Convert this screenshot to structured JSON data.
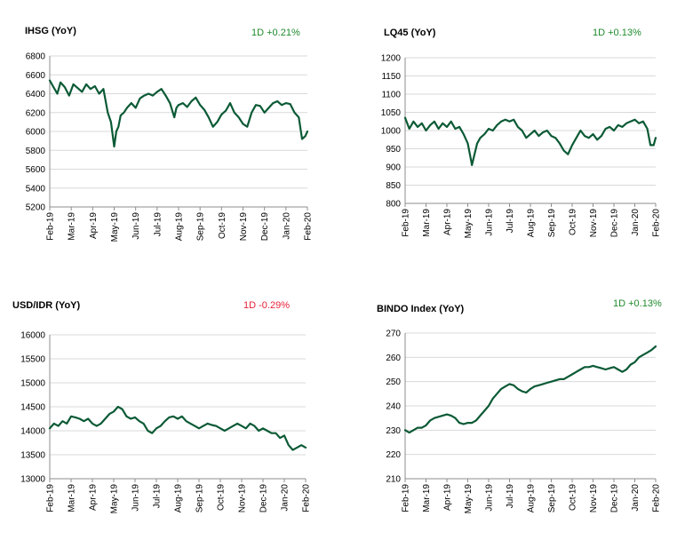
{
  "colors": {
    "line": "#0b5a35",
    "positive": "#1e8a2c",
    "negative": "#e8213a",
    "grid": "#d9d9d9",
    "axis": "#8c8c8c"
  },
  "chart_data": [
    {
      "type": "line",
      "title": "IHSG (YoY)",
      "change": "1D +0.21%",
      "change_sign": "positive",
      "ylim": [
        5200,
        6800
      ],
      "yticks": [
        "6800",
        "6600",
        "6400",
        "6200",
        "6000",
        "5800",
        "5600",
        "5400",
        "5200"
      ],
      "xticks": [
        "Feb-19",
        "Mar-19",
        "Apr-19",
        "May-19",
        "Jun-19",
        "Jul-19",
        "Aug-19",
        "Sep-19",
        "Oct-19",
        "Nov-19",
        "Dec-19",
        "Jan-20",
        "Feb-20"
      ],
      "grid": true,
      "series": [
        {
          "x": [
            0,
            0.15,
            0.35,
            0.5,
            0.7,
            0.9,
            1.1,
            1.3,
            1.5,
            1.7,
            1.9,
            2.1,
            2.3,
            2.5,
            2.7,
            2.85,
            3.0,
            3.1,
            3.2,
            3.3,
            3.45,
            3.6,
            3.8,
            4.0,
            4.2,
            4.4,
            4.6,
            4.8,
            5.0,
            5.2,
            5.4,
            5.6,
            5.8,
            5.9,
            6.0,
            6.2,
            6.4,
            6.6,
            6.8,
            7.0,
            7.2,
            7.4,
            7.6,
            7.8,
            8.0,
            8.2,
            8.4,
            8.6,
            8.8,
            9.0,
            9.2,
            9.4,
            9.6,
            9.8,
            10.0,
            10.2,
            10.4,
            10.6,
            10.8,
            11.0,
            11.2,
            11.4,
            11.6,
            11.75,
            11.9,
            12.0
          ],
          "values": [
            6540,
            6480,
            6400,
            6520,
            6470,
            6380,
            6500,
            6460,
            6420,
            6500,
            6450,
            6480,
            6400,
            6450,
            6200,
            6100,
            5840,
            6000,
            6050,
            6170,
            6200,
            6250,
            6300,
            6250,
            6350,
            6380,
            6400,
            6380,
            6420,
            6450,
            6380,
            6300,
            6150,
            6250,
            6280,
            6300,
            6260,
            6320,
            6360,
            6280,
            6230,
            6150,
            6050,
            6100,
            6180,
            6220,
            6300,
            6200,
            6150,
            6080,
            6050,
            6200,
            6280,
            6270,
            6200,
            6250,
            6300,
            6320,
            6280,
            6300,
            6290,
            6200,
            6150,
            5920,
            5950,
            6000
          ]
        }
      ]
    },
    {
      "type": "line",
      "title": "LQ45 (YoY)",
      "change": "1D +0.13%",
      "change_sign": "positive",
      "ylim": [
        800,
        1200
      ],
      "yticks": [
        "1200",
        "1150",
        "1100",
        "1050",
        "1000",
        "950",
        "900",
        "850",
        "800"
      ],
      "xticks": [
        "Feb-19",
        "Mar-19",
        "Apr-19",
        "May-19",
        "Jun-19",
        "Jul-19",
        "Aug-19",
        "Sep-19",
        "Oct-19",
        "Nov-19",
        "Dec-19",
        "Jan-20",
        "Feb-20"
      ],
      "grid": true,
      "series": [
        {
          "x": [
            0,
            0.2,
            0.4,
            0.6,
            0.8,
            1.0,
            1.2,
            1.4,
            1.6,
            1.8,
            2.0,
            2.2,
            2.4,
            2.6,
            2.8,
            3.0,
            3.1,
            3.2,
            3.3,
            3.45,
            3.6,
            3.8,
            4.0,
            4.2,
            4.4,
            4.6,
            4.8,
            5.0,
            5.2,
            5.4,
            5.6,
            5.8,
            6.0,
            6.2,
            6.4,
            6.6,
            6.8,
            7.0,
            7.2,
            7.4,
            7.6,
            7.8,
            8.0,
            8.2,
            8.4,
            8.6,
            8.8,
            9.0,
            9.2,
            9.4,
            9.6,
            9.8,
            10.0,
            10.2,
            10.4,
            10.6,
            10.8,
            11.0,
            11.2,
            11.4,
            11.6,
            11.75,
            11.9,
            12.0
          ],
          "values": [
            1035,
            1005,
            1025,
            1010,
            1020,
            1000,
            1015,
            1025,
            1005,
            1020,
            1010,
            1025,
            1005,
            1010,
            990,
            965,
            935,
            905,
            930,
            965,
            980,
            990,
            1005,
            1000,
            1015,
            1025,
            1030,
            1025,
            1030,
            1010,
            1000,
            980,
            990,
            1000,
            985,
            995,
            1000,
            985,
            980,
            965,
            945,
            935,
            960,
            980,
            1000,
            985,
            980,
            990,
            975,
            985,
            1005,
            1010,
            1000,
            1015,
            1010,
            1020,
            1025,
            1030,
            1020,
            1025,
            1005,
            960,
            960,
            980
          ]
        }
      ]
    },
    {
      "type": "line",
      "title": "USD/IDR  (YoY)",
      "change": "1D -0.29%",
      "change_sign": "negative",
      "ylim": [
        13000,
        16000
      ],
      "yticks": [
        "16000",
        "15500",
        "15000",
        "14500",
        "14000",
        "13500",
        "13000"
      ],
      "xticks": [
        "Feb-19",
        "Mar-19",
        "Apr-19",
        "May-19",
        "Jun-19",
        "Jul-19",
        "Aug-19",
        "Sep-19",
        "Oct-19",
        "Nov-19",
        "Dec-19",
        "Jan-20",
        "Feb-20"
      ],
      "grid": true,
      "series": [
        {
          "x": [
            0,
            0.2,
            0.4,
            0.6,
            0.8,
            1.0,
            1.2,
            1.4,
            1.6,
            1.8,
            2.0,
            2.2,
            2.4,
            2.6,
            2.8,
            3.0,
            3.2,
            3.4,
            3.6,
            3.8,
            4.0,
            4.2,
            4.4,
            4.6,
            4.8,
            5.0,
            5.2,
            5.4,
            5.6,
            5.8,
            6.0,
            6.2,
            6.4,
            6.6,
            6.8,
            7.0,
            7.2,
            7.4,
            7.6,
            7.8,
            8.0,
            8.2,
            8.4,
            8.6,
            8.8,
            9.0,
            9.2,
            9.4,
            9.6,
            9.8,
            10.0,
            10.2,
            10.4,
            10.6,
            10.8,
            11.0,
            11.2,
            11.4,
            11.6,
            11.8,
            12.0
          ],
          "values": [
            14050,
            14150,
            14100,
            14200,
            14150,
            14300,
            14280,
            14250,
            14200,
            14250,
            14150,
            14100,
            14150,
            14250,
            14350,
            14400,
            14500,
            14450,
            14300,
            14250,
            14280,
            14200,
            14150,
            14000,
            13950,
            14050,
            14100,
            14200,
            14280,
            14300,
            14250,
            14300,
            14200,
            14150,
            14100,
            14050,
            14100,
            14150,
            14120,
            14100,
            14050,
            14000,
            14050,
            14100,
            14150,
            14100,
            14050,
            14150,
            14100,
            14000,
            14050,
            14000,
            13950,
            13950,
            13850,
            13900,
            13700,
            13600,
            13650,
            13700,
            13650
          ]
        }
      ]
    },
    {
      "type": "line",
      "title": "BINDO Index (YoY)",
      "change": "1D +0.13%",
      "change_sign": "positive",
      "ylim": [
        210,
        270
      ],
      "yticks": [
        "270",
        "260",
        "250",
        "240",
        "230",
        "220",
        "210"
      ],
      "xticks": [
        "Feb-19",
        "Mar-19",
        "Apr-19",
        "May-19",
        "Jun-19",
        "Jul-19",
        "Aug-19",
        "Sep-19",
        "Oct-19",
        "Nov-19",
        "Dec-19",
        "Jan-20",
        "Feb-20"
      ],
      "grid": true,
      "series": [
        {
          "x": [
            0,
            0.2,
            0.4,
            0.6,
            0.8,
            1.0,
            1.2,
            1.4,
            1.6,
            1.8,
            2.0,
            2.2,
            2.4,
            2.6,
            2.8,
            3.0,
            3.2,
            3.4,
            3.6,
            3.8,
            4.0,
            4.2,
            4.4,
            4.6,
            4.8,
            5.0,
            5.2,
            5.4,
            5.6,
            5.8,
            6.0,
            6.2,
            6.4,
            6.6,
            6.8,
            7.0,
            7.2,
            7.4,
            7.6,
            7.8,
            8.0,
            8.2,
            8.4,
            8.6,
            8.8,
            9.0,
            9.2,
            9.4,
            9.6,
            9.8,
            10.0,
            10.2,
            10.4,
            10.6,
            10.8,
            11.0,
            11.2,
            11.4,
            11.6,
            11.8,
            12.0
          ],
          "values": [
            230,
            229,
            230,
            231,
            231,
            232,
            234,
            235,
            235.5,
            236,
            236.5,
            236,
            235,
            233,
            232.5,
            233,
            233,
            234,
            236,
            238,
            240,
            243,
            245,
            247,
            248,
            249,
            248.5,
            247,
            246,
            245.5,
            247,
            248,
            248.5,
            249,
            249.5,
            250,
            250.5,
            251,
            251,
            252,
            253,
            254,
            255,
            256,
            256,
            256.5,
            256,
            255.5,
            255,
            255.5,
            256,
            255,
            254,
            255,
            257,
            258,
            260,
            261,
            262,
            263,
            264.5
          ]
        }
      ]
    }
  ]
}
